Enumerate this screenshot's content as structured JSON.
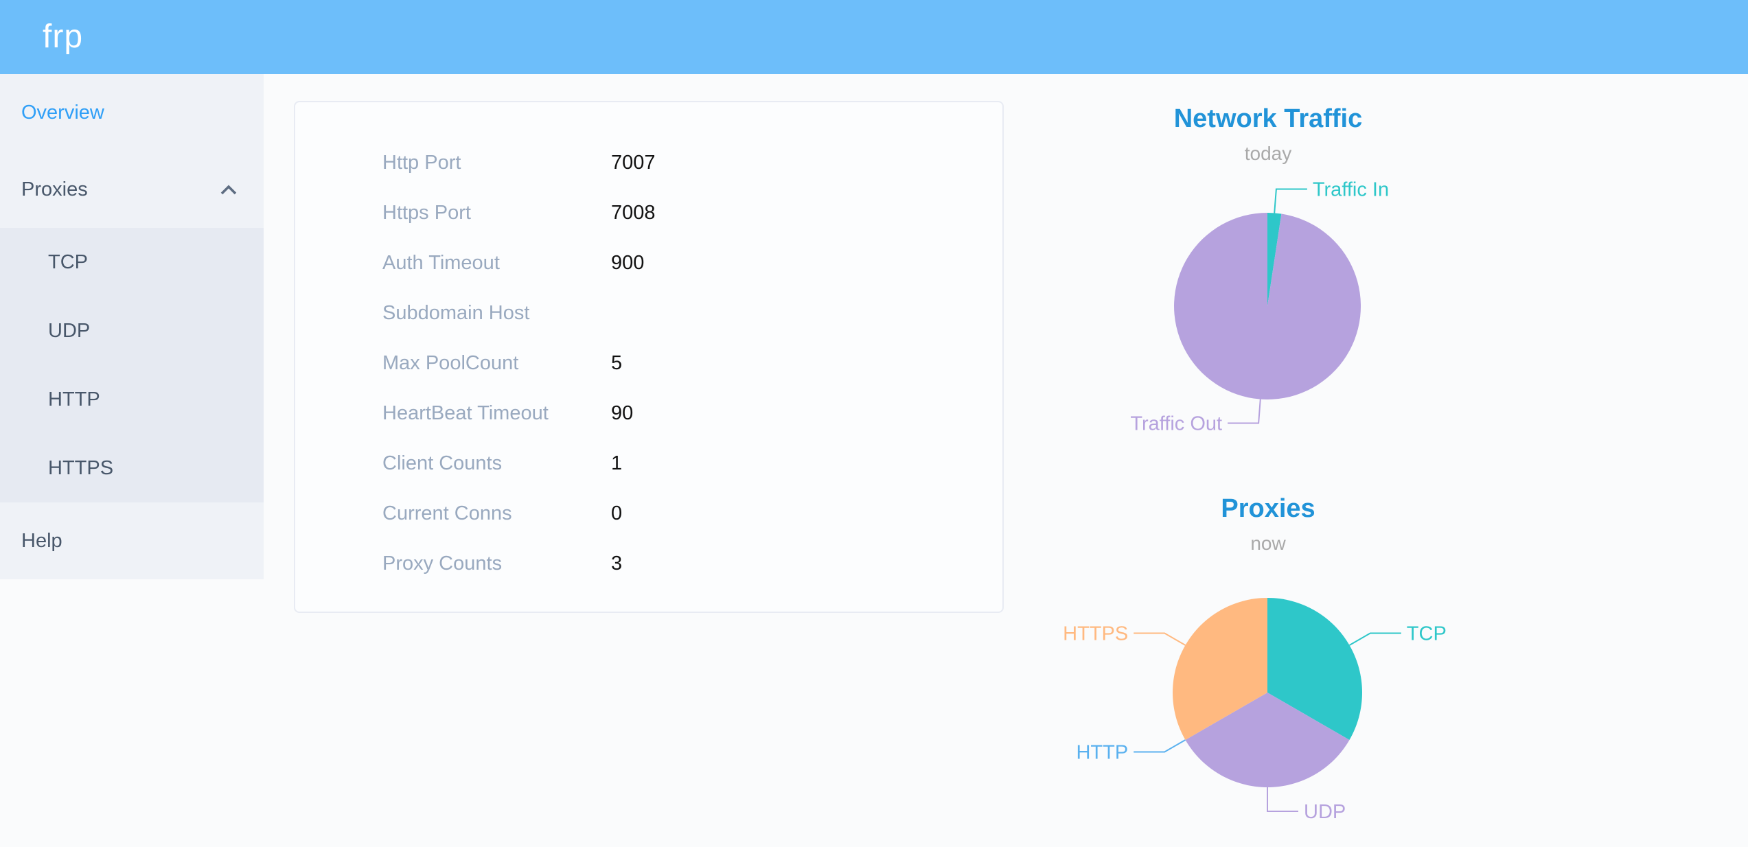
{
  "header": {
    "logo": "frp"
  },
  "theme": {
    "header_background": "#6dbefa",
    "sidebar_background": "#eff2f7",
    "submenu_background": "#e6eaf2",
    "menu_text": "#48576a",
    "menu_active_text": "#2f9ff7",
    "chart_title_color": "#2193d8",
    "chart_subtitle_color": "#a9a9a9",
    "card_label_color": "#99a9bf"
  },
  "sidebar": {
    "items": [
      {
        "label": "Overview",
        "state": "active"
      },
      {
        "label": "Proxies",
        "expanded": true,
        "icon": "chevron-up-icon",
        "children": [
          {
            "label": "TCP"
          },
          {
            "label": "UDP"
          },
          {
            "label": "HTTP"
          },
          {
            "label": "HTTPS"
          }
        ]
      },
      {
        "label": "Help"
      }
    ]
  },
  "overview_card": {
    "rows": [
      {
        "label": "Http Port",
        "value": "7007"
      },
      {
        "label": "Https Port",
        "value": "7008"
      },
      {
        "label": "Auth Timeout",
        "value": "900"
      },
      {
        "label": "Subdomain Host",
        "value": ""
      },
      {
        "label": "Max PoolCount",
        "value": "5"
      },
      {
        "label": "HeartBeat Timeout",
        "value": "90"
      },
      {
        "label": "Client Counts",
        "value": "1"
      },
      {
        "label": "Current Conns",
        "value": "0"
      },
      {
        "label": "Proxy Counts",
        "value": "3"
      }
    ]
  },
  "chart_data": [
    {
      "type": "pie",
      "title": "Network Traffic",
      "subtitle": "today",
      "unit": "percent, estimated from arc angles (absolute byte values not shown)",
      "legend_position": "callout-labels",
      "slices": [
        {
          "name": "Traffic In",
          "value": 2.4,
          "color": "#2ec7c9"
        },
        {
          "name": "Traffic Out",
          "value": 97.6,
          "color": "#b6a2de"
        }
      ]
    },
    {
      "type": "pie",
      "title": "Proxies",
      "subtitle": "now",
      "unit": "proxy count",
      "legend_position": "callout-labels",
      "slices": [
        {
          "name": "TCP",
          "value": 1,
          "color": "#2ec7c9"
        },
        {
          "name": "UDP",
          "value": 1,
          "color": "#b6a2de"
        },
        {
          "name": "HTTP",
          "value": 0,
          "color": "#5ab1ef"
        },
        {
          "name": "HTTPS",
          "value": 1,
          "color": "#ffb980"
        }
      ]
    }
  ]
}
